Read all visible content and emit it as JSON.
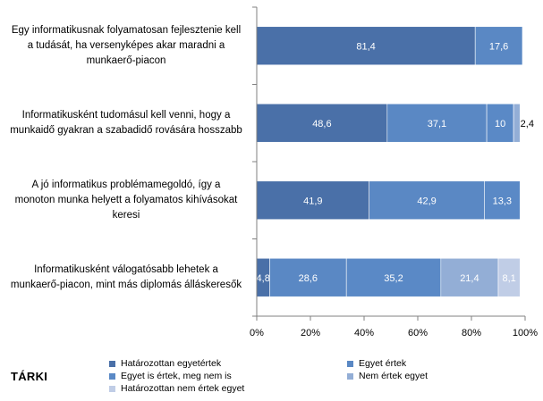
{
  "source_label": "TÁRKI",
  "colors": {
    "Határozottan egyetértek": "#4a70a8",
    "Egyet értek": "#5a88c4",
    "Egyet is értek, meg nem is": "#5a89c6",
    "Nem értek egyet": "#93aed6",
    "Határozottan nem értek egyet": "#c0cde6",
    "axis": "#808080"
  },
  "chart_data": {
    "type": "bar",
    "orientation": "horizontal",
    "stacked": true,
    "categories": [
      "Egy informatikusnak folyamatosan fejlesztenie kell a tudását, ha versenyképes akar maradni a munkaerő-piacon",
      "Informatikusként tudomásul kell venni, hogy a munkaidő gyakran a szabadidő rovására hosszabb",
      "A jó informatikus problémamegoldó, így a monoton munka helyett a folyamatos kihívásokat keresi",
      "Informatikusként válogatósabb lehetek a munkaerő-piacon, mint más diplomás álláskeresők"
    ],
    "category_lines": [
      [
        "Egy informatikusnak folyamatosan fejlesztenie kell",
        "a tudását, ha versenyképes akar maradni a",
        "munkaerő-piacon"
      ],
      [
        "Informatikusként tudomásul kell venni, hogy a",
        "munkaidő gyakran a szabadidő rovására hosszabb"
      ],
      [
        "A jó informatikus problémamegoldó, így a",
        "monoton munka helyett a folyamatos kihívásokat",
        "keresi"
      ],
      [
        "Informatikusként válogatósabb lehetek a",
        "munkaerő-piacon, mint más diplomás álláskeresők"
      ]
    ],
    "series": [
      {
        "name": "Határozottan egyetértek",
        "values": [
          81.4,
          48.6,
          41.9,
          4.8
        ]
      },
      {
        "name": "Egyet értek",
        "values": [
          17.6,
          37.1,
          42.9,
          28.6
        ]
      },
      {
        "name": "Egyet is értek, meg nem is",
        "values": [
          null,
          10,
          13.3,
          35.2
        ]
      },
      {
        "name": "Nem értek egyet",
        "values": [
          null,
          2.4,
          null,
          21.4
        ]
      },
      {
        "name": "Határozottan nem értek egyet",
        "values": [
          null,
          null,
          null,
          8.1
        ]
      }
    ],
    "data_labels": [
      [
        "81,4",
        "17,6",
        "",
        "",
        ""
      ],
      [
        "48,6",
        "37,1",
        "10",
        "2,4",
        ""
      ],
      [
        "41,9",
        "42,9",
        "13,3",
        "",
        ""
      ],
      [
        "4,8",
        "28,6",
        "35,2",
        "21,4",
        "8,1"
      ]
    ],
    "x_ticks": [
      "0%",
      "20%",
      "40%",
      "60%",
      "80%",
      "100%"
    ],
    "xlim": [
      0,
      100
    ],
    "grid": false,
    "legend_position": "bottom"
  }
}
